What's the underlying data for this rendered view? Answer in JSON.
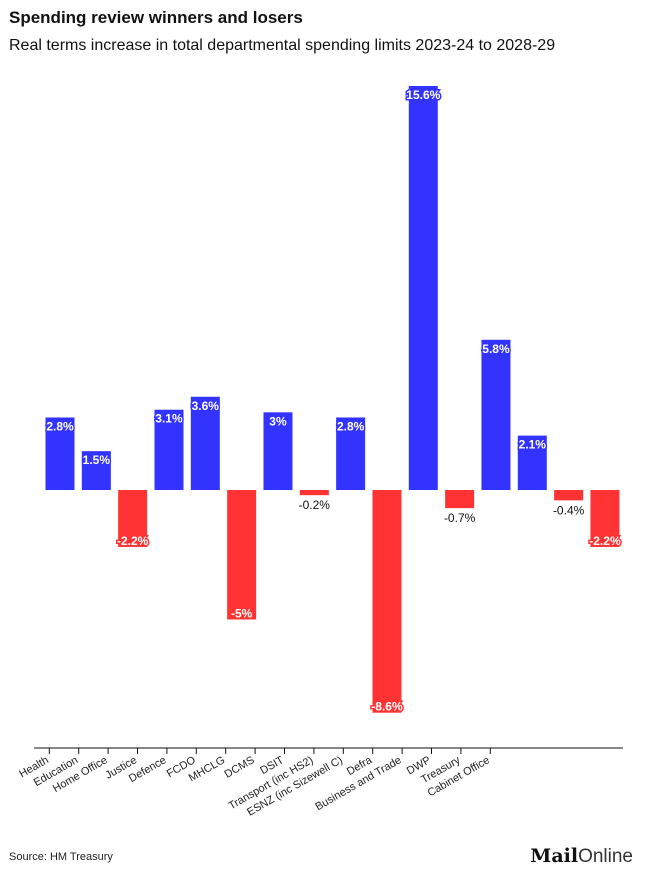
{
  "title": "Spending review winners and losers",
  "subtitle": "Real terms increase in total departmental spending limits 2023-24 to 2028-29",
  "source": "Source: HM Treasury",
  "logo": "MailOnline",
  "colors": {
    "positive": "#3333ff",
    "negative": "#ff3333"
  },
  "chart_data": {
    "type": "bar",
    "categories": [
      "Health",
      "Education",
      "Home Office",
      "Justice",
      "Defence",
      "FCDO",
      "MHCLG",
      "DCMS",
      "DSIT",
      "Transport (inc HS2)",
      "ESNZ (inc Sizewell C)",
      "Defra",
      "Business and Trade",
      "DWP",
      "Treasury",
      "Cabinet Office"
    ],
    "values": [
      2.8,
      1.5,
      -2.2,
      3.1,
      3.6,
      -5,
      3,
      -0.2,
      2.8,
      -8.6,
      15.6,
      -0.7,
      5.8,
      2.1,
      -0.4,
      -2.2
    ],
    "labels": [
      "2.8%",
      "1.5%",
      "-2.2%",
      "3.1%",
      "3.6%",
      "-5%",
      "3%",
      "-0.2%",
      "2.8%",
      "-8.6%",
      "15.6%",
      "-0.7%",
      "5.8%",
      "2.1%",
      "-0.4%",
      "-2.2%"
    ],
    "ylim": [
      -9.8,
      15.6
    ],
    "grid": false
  }
}
